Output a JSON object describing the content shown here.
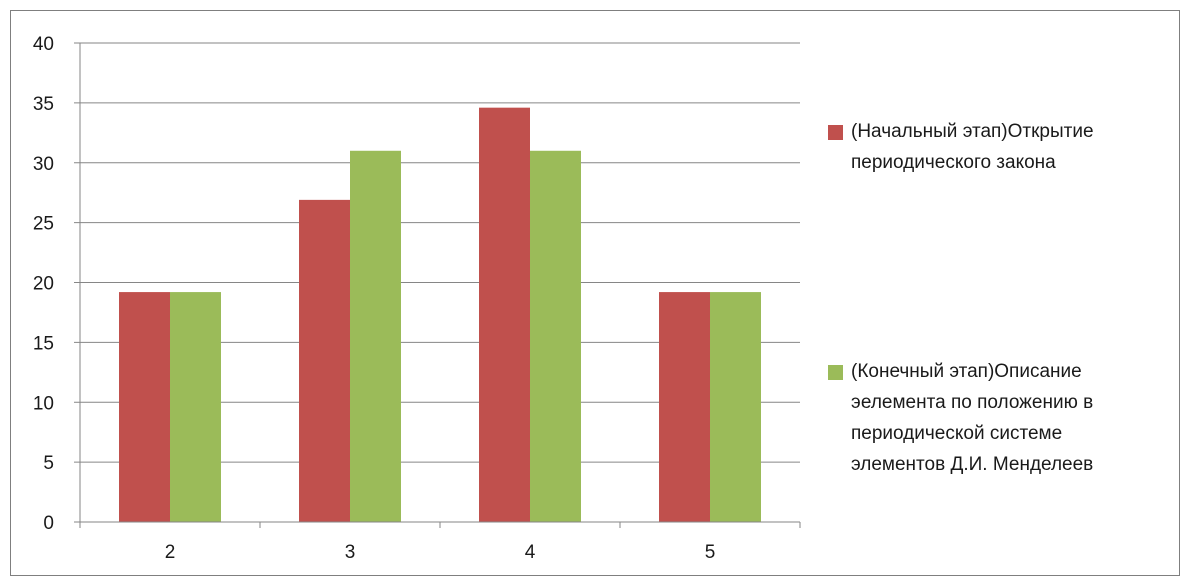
{
  "chart_data": {
    "type": "bar",
    "categories": [
      "2",
      "3",
      "4",
      "5"
    ],
    "series": [
      {
        "name": "(Начальный этап)Открытие периодического закона",
        "values": [
          19.2,
          26.9,
          34.6,
          19.2
        ],
        "color": "#c0504d"
      },
      {
        "name": "(Конечный этап)Описание эелемента по положению в периодической системе элементов Д.И. Менделеев",
        "values": [
          19.2,
          31.0,
          31.0,
          19.2
        ],
        "color": "#9bbb59"
      }
    ],
    "ylim": [
      0,
      40
    ],
    "yticks": [
      "0",
      "5",
      "10",
      "15",
      "20",
      "25",
      "30",
      "35",
      "40"
    ],
    "grid": true,
    "legend_position": "right",
    "xlabel": "",
    "ylabel": "",
    "title": ""
  }
}
